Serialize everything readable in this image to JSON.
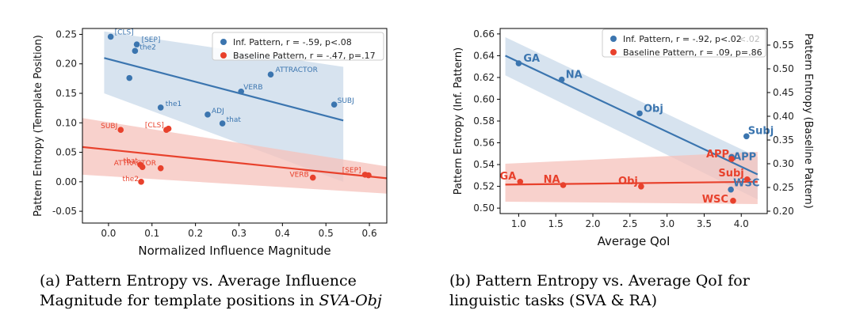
{
  "colors": {
    "inf": "#3b75af",
    "base": "#e8412c",
    "inf_band": "#c9d9ea",
    "base_band": "#f6c2bb",
    "legend_border": "#cccccc"
  },
  "captions": {
    "a_prefix": "(a) Pattern Entropy vs.  Average Influence",
    "a_line2": "Magnitude for template positions in",
    "a_italic": "SVA-Obj",
    "b_line1": "(b) Pattern Entropy vs.  Average QoI for",
    "b_line2": "linguistic tasks (SVA & RA)"
  },
  "chart_data": [
    {
      "type": "scatter",
      "panel": "a",
      "xlabel": "Normalized Influence Magnitude",
      "ylabel": "Pattern Entropy (Template Position)",
      "xlim": [
        -0.06,
        0.64
      ],
      "ylim": [
        -0.07,
        0.26
      ],
      "xticks": [
        "0.0",
        "0.1",
        "0.2",
        "0.3",
        "0.4",
        "0.5",
        "0.6"
      ],
      "xtick_values": [
        0.0,
        0.1,
        0.2,
        0.3,
        0.4,
        0.5,
        0.6
      ],
      "yticks": [
        "-0.05",
        "0.00",
        "0.05",
        "0.10",
        "0.15",
        "0.20",
        "0.25"
      ],
      "ytick_values": [
        -0.05,
        0.0,
        0.05,
        0.1,
        0.15,
        0.2,
        0.25
      ],
      "legend": [
        "Inf. Pattern, r = -.59, p<.08",
        "Baseline Pattern, r = -.47, p=.17"
      ],
      "series": [
        {
          "name": "Inf. Pattern",
          "color_key": "inf",
          "points": [
            {
              "x": 0.005,
              "y": 0.246,
              "label": "[CLS]"
            },
            {
              "x": 0.065,
              "y": 0.233,
              "label": "[SEP]"
            },
            {
              "x": 0.061,
              "y": 0.222,
              "label": "the2"
            },
            {
              "x": 0.048,
              "y": 0.176,
              "label": ""
            },
            {
              "x": 0.12,
              "y": 0.126,
              "label": "the1"
            },
            {
              "x": 0.228,
              "y": 0.114,
              "label": "ADJ"
            },
            {
              "x": 0.262,
              "y": 0.099,
              "label": "that"
            },
            {
              "x": 0.305,
              "y": 0.153,
              "label": "VERB"
            },
            {
              "x": 0.373,
              "y": 0.182,
              "label": "ATTRACTOR"
            },
            {
              "x": 0.519,
              "y": 0.131,
              "label": "SUBJ"
            }
          ],
          "fit": {
            "x": [
              -0.01,
              0.54
            ],
            "y": [
              0.21,
              0.104
            ]
          },
          "band": {
            "upper": [
              0.255,
              0.195
            ],
            "lower": [
              0.15,
              0.0
            ]
          }
        },
        {
          "name": "Baseline Pattern",
          "color_key": "base",
          "points": [
            {
              "x": 0.028,
              "y": 0.088,
              "label": "SUBJ"
            },
            {
              "x": 0.133,
              "y": 0.088,
              "label": "[CLS]"
            },
            {
              "x": 0.138,
              "y": 0.09,
              "label": ""
            },
            {
              "x": 0.073,
              "y": 0.029,
              "label": "that"
            },
            {
              "x": 0.078,
              "y": 0.025,
              "label": "ATTRACTOR"
            },
            {
              "x": 0.12,
              "y": 0.023,
              "label": ""
            },
            {
              "x": 0.075,
              "y": 0.0,
              "label": "the2"
            },
            {
              "x": 0.47,
              "y": 0.007,
              "label": "VERB"
            },
            {
              "x": 0.59,
              "y": 0.012,
              "label": "[SEP]"
            },
            {
              "x": 0.598,
              "y": 0.011,
              "label": ""
            }
          ],
          "fit": {
            "x": [
              -0.06,
              0.64
            ],
            "y": [
              0.059,
              0.006
            ]
          },
          "band": {
            "upper": [
              0.108,
              0.026
            ],
            "lower": [
              0.012,
              -0.02
            ]
          }
        }
      ]
    },
    {
      "type": "scatter",
      "panel": "b",
      "xlabel": "Average QoI",
      "ylabel": "Pattern Entropy (Inf. Pattern)",
      "ylabel_right": "Pattern Entropy (Baseline Pattern)",
      "xlim": [
        0.75,
        4.35
      ],
      "ylim": [
        0.495,
        0.665
      ],
      "ylim_right": [
        0.195,
        0.585
      ],
      "xticks": [
        "1.0",
        "1.5",
        "2.0",
        "2.5",
        "3.0",
        "3.5",
        "4.0"
      ],
      "xtick_values": [
        1.0,
        1.5,
        2.0,
        2.5,
        3.0,
        3.5,
        4.0
      ],
      "yticks": [
        "0.50",
        "0.52",
        "0.54",
        "0.56",
        "0.58",
        "0.60",
        "0.62",
        "0.64",
        "0.66"
      ],
      "ytick_values": [
        0.5,
        0.52,
        0.54,
        0.56,
        0.58,
        0.6,
        0.62,
        0.64,
        0.66
      ],
      "yticks_right": [
        "0.20",
        "0.25",
        "0.30",
        "0.35",
        "0.40",
        "0.45",
        "0.50",
        "0.55"
      ],
      "ytick_values_right": [
        0.2,
        0.25,
        0.3,
        0.35,
        0.4,
        0.45,
        0.5,
        0.55
      ],
      "legend": [
        "Inf. Pattern, r = -.92, p<.02",
        "Baseline Pattern, r = .09, p=.86"
      ],
      "legend_ghost": "<.02",
      "series": [
        {
          "name": "Inf. Pattern",
          "color_key": "inf",
          "axis": "left",
          "points": [
            {
              "x": 1.0,
              "y": 0.633,
              "label": "GA"
            },
            {
              "x": 1.58,
              "y": 0.618,
              "label": "NA"
            },
            {
              "x": 2.63,
              "y": 0.587,
              "label": "Obj"
            },
            {
              "x": 4.07,
              "y": 0.566,
              "label": "Subj"
            },
            {
              "x": 3.87,
              "y": 0.547,
              "label": "APP"
            },
            {
              "x": 3.86,
              "y": 0.517,
              "label": "WSC"
            }
          ],
          "fit": {
            "x": [
              0.82,
              4.22
            ],
            "y": [
              0.64,
              0.531
            ]
          },
          "band": {
            "upper": [
              0.657,
              0.547
            ],
            "lower": [
              0.622,
              0.508
            ]
          }
        },
        {
          "name": "Baseline Pattern",
          "color_key": "base",
          "axis": "right",
          "points": [
            {
              "x": 1.02,
              "y": 0.262,
              "label": "GA"
            },
            {
              "x": 1.6,
              "y": 0.255,
              "label": "NA"
            },
            {
              "x": 2.65,
              "y": 0.252,
              "label": "Obj"
            },
            {
              "x": 4.08,
              "y": 0.267,
              "label": "Subj"
            },
            {
              "x": 3.87,
              "y": 0.31,
              "label": "APP"
            },
            {
              "x": 3.89,
              "y": 0.222,
              "label": "WSC"
            }
          ],
          "fit": {
            "x": [
              0.82,
              4.22
            ],
            "y": [
              0.256,
              0.262
            ]
          },
          "band": {
            "upper": [
              0.3,
              0.325
            ],
            "lower": [
              0.22,
              0.215
            ]
          }
        }
      ]
    }
  ]
}
